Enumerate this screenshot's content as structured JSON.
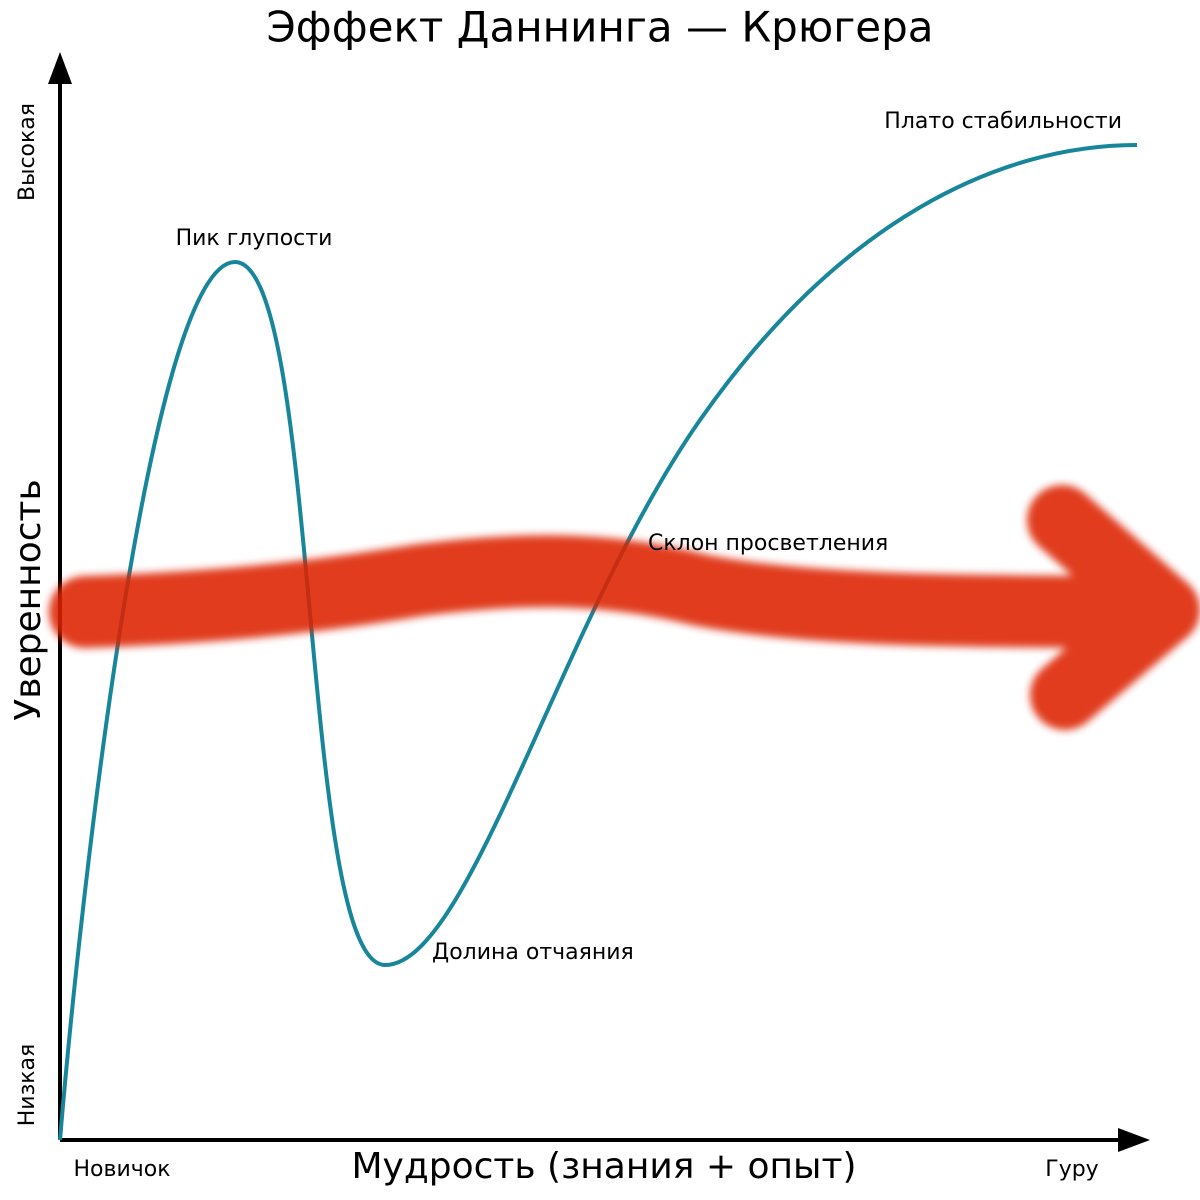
{
  "title": "Эффект Даннинга — Крюгера",
  "y_axis": {
    "label": "Уверенность",
    "high": "Высокая",
    "low": "Низкая"
  },
  "x_axis": {
    "label": "Мудрость (знания + опыт)",
    "start": "Новичок",
    "end": "Гуру"
  },
  "annotations": {
    "peak": "Пик глупости",
    "valley": "Долина отчаяния",
    "slope": "Склон просветления",
    "plateau": "Плато стабильности"
  }
}
